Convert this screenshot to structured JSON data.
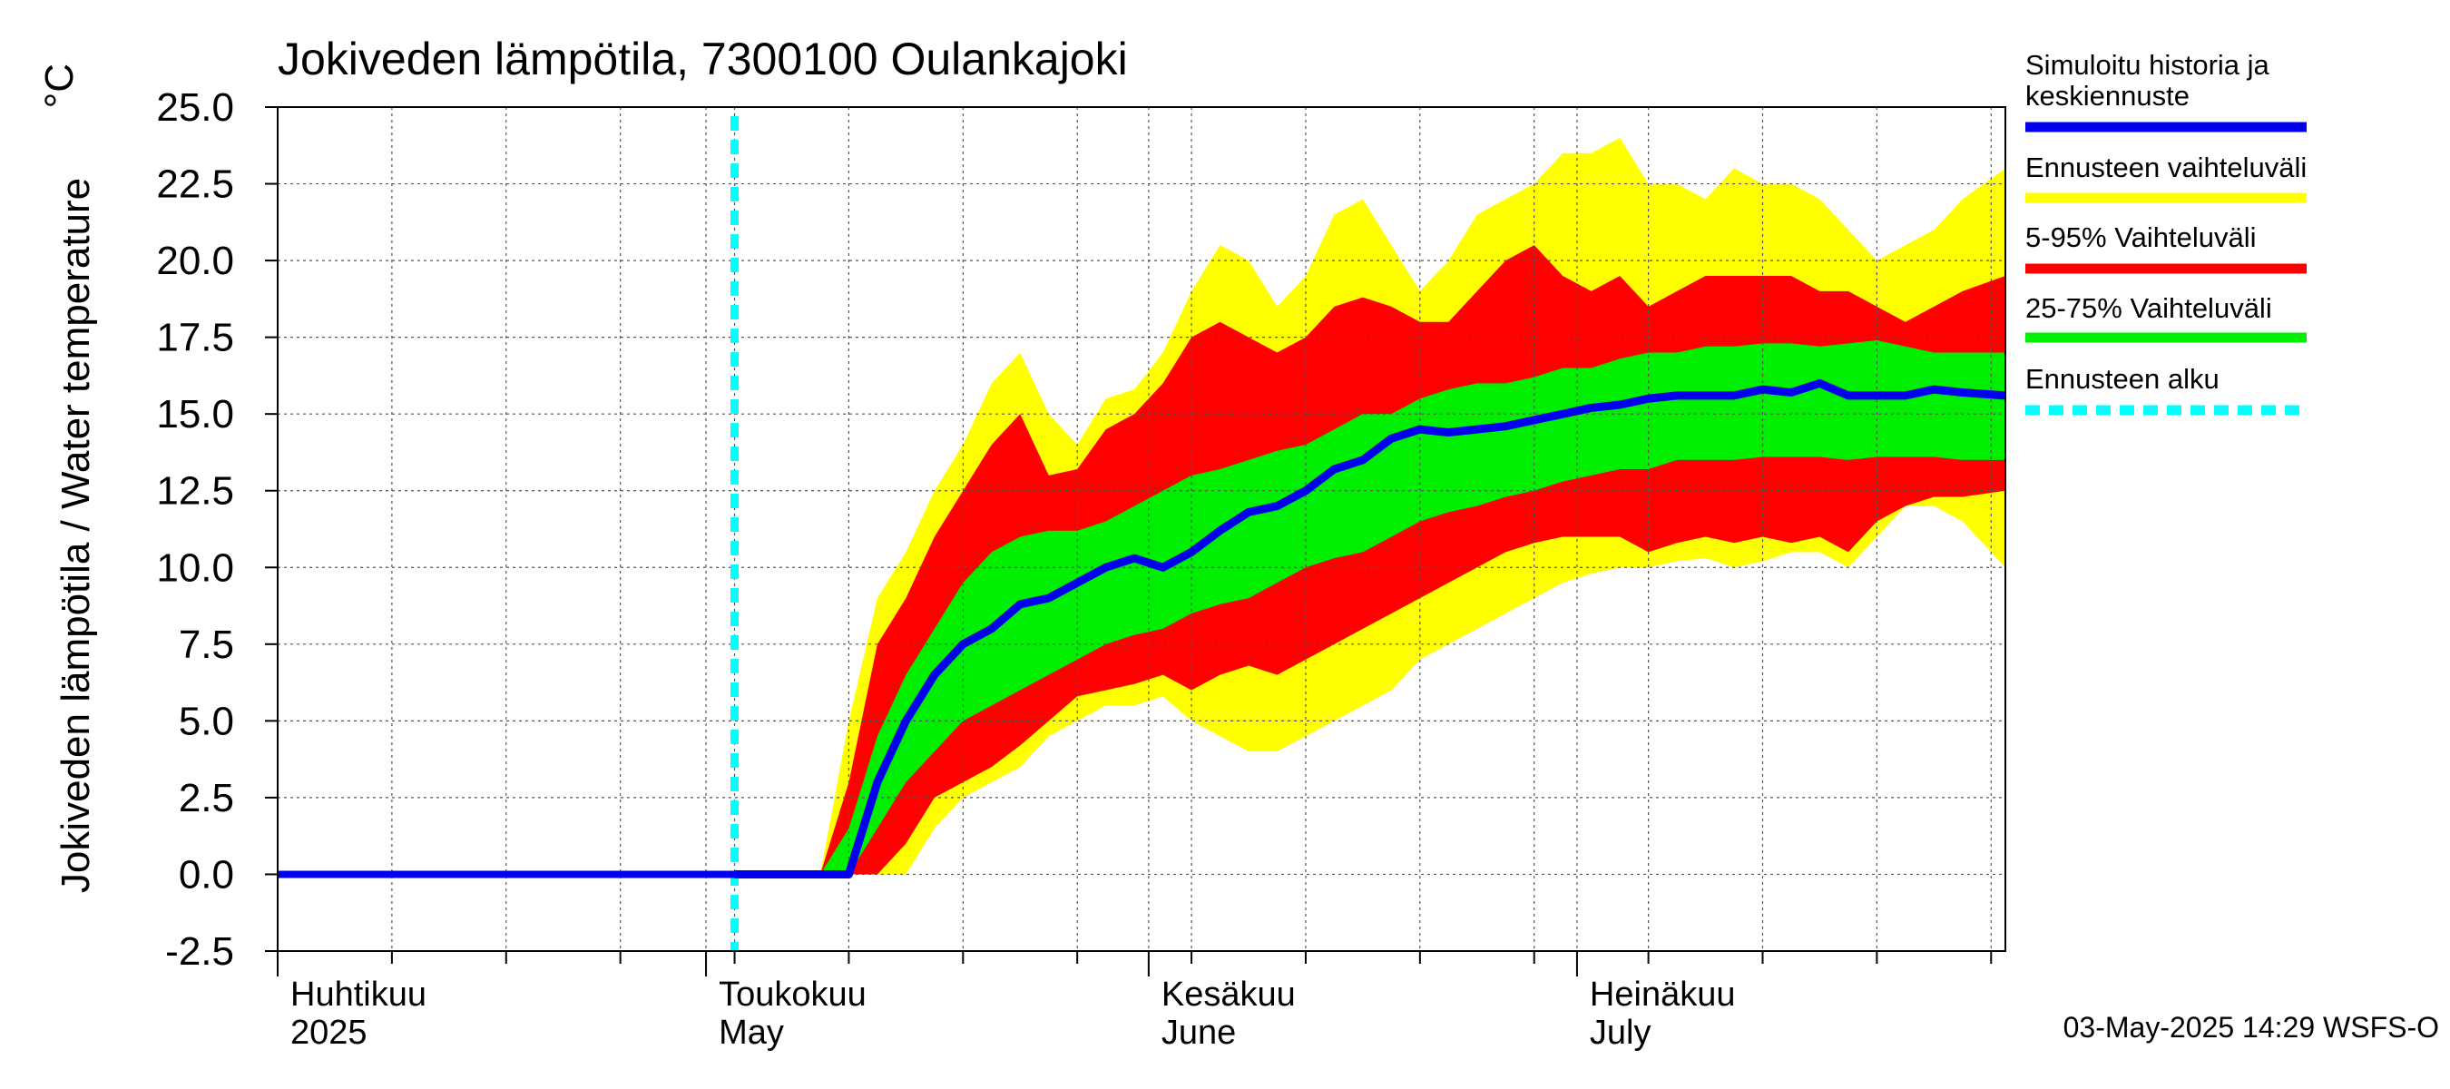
{
  "chart_data": {
    "type": "area",
    "title": "Jokiveden lämpötila, 7300100 Oulankajoki",
    "ylabel": "Jokiveden lämpötila / Water temperature",
    "yunit": "°C",
    "ylim": [
      -2.5,
      25.0
    ],
    "xlim": [
      "2025-04-01",
      "2025-07-31"
    ],
    "yticks": [
      "-2.5",
      "0.0",
      "2.5",
      "5.0",
      "7.5",
      "10.0",
      "12.5",
      "15.0",
      "17.5",
      "20.0",
      "22.5",
      "25.0"
    ],
    "month_labels": [
      {
        "fi": "Huhtikuu",
        "en": "2025",
        "date": "2025-04-01"
      },
      {
        "fi": "Toukokuu",
        "en": "May",
        "date": "2025-05-01"
      },
      {
        "fi": "Kesäkuu",
        "en": "June",
        "date": "2025-06-01"
      },
      {
        "fi": "Heinäkuu",
        "en": "July",
        "date": "2025-07-01"
      }
    ],
    "grid": true,
    "legend_position": "right",
    "forecast_start": "2025-05-03",
    "colors": {
      "median": "#0000ee",
      "range_full": "#ffff00",
      "range_5_95": "#ff0000",
      "range_25_75": "#00ee00",
      "forecast_start": "#00ffff"
    },
    "history": {
      "x": [
        "2025-04-01",
        "2025-05-03"
      ],
      "y": [
        0.0,
        0.0
      ]
    },
    "bands": {
      "dates": [
        "2025-05-03",
        "2025-05-09",
        "2025-05-11",
        "2025-05-13",
        "2025-05-15",
        "2025-05-17",
        "2025-05-19",
        "2025-05-21",
        "2025-05-23",
        "2025-05-25",
        "2025-05-27",
        "2025-05-29",
        "2025-05-31",
        "2025-06-02",
        "2025-06-04",
        "2025-06-06",
        "2025-06-08",
        "2025-06-10",
        "2025-06-12",
        "2025-06-14",
        "2025-06-16",
        "2025-06-18",
        "2025-06-20",
        "2025-06-22",
        "2025-06-24",
        "2025-06-26",
        "2025-06-28",
        "2025-06-30",
        "2025-07-02",
        "2025-07-04",
        "2025-07-06",
        "2025-07-08",
        "2025-07-10",
        "2025-07-12",
        "2025-07-14",
        "2025-07-16",
        "2025-07-18",
        "2025-07-20",
        "2025-07-22",
        "2025-07-24",
        "2025-07-26",
        "2025-07-28",
        "2025-07-31"
      ],
      "max": [
        0.0,
        0.0,
        5.0,
        9.0,
        10.5,
        12.5,
        14.0,
        16.0,
        17.0,
        15.0,
        14.0,
        15.5,
        15.8,
        17.0,
        19.0,
        20.5,
        20.0,
        18.5,
        19.5,
        21.5,
        22.0,
        20.5,
        19.0,
        20.0,
        21.5,
        22.0,
        22.5,
        23.5,
        23.5,
        24.0,
        22.5,
        22.5,
        22.0,
        23.0,
        22.5,
        22.5,
        22.0,
        21.0,
        20.0,
        20.5,
        21.0,
        22.0,
        23.0
      ],
      "p95": [
        0.0,
        0.0,
        3.0,
        7.5,
        9.0,
        11.0,
        12.5,
        14.0,
        15.0,
        13.0,
        13.2,
        14.5,
        15.0,
        16.0,
        17.5,
        18.0,
        17.5,
        17.0,
        17.5,
        18.5,
        18.8,
        18.5,
        18.0,
        18.0,
        19.0,
        20.0,
        20.5,
        19.5,
        19.0,
        19.5,
        18.5,
        19.0,
        19.5,
        19.5,
        19.5,
        19.5,
        19.0,
        19.0,
        18.5,
        18.0,
        18.5,
        19.0,
        19.5
      ],
      "p75": [
        0.0,
        0.0,
        1.5,
        4.5,
        6.5,
        8.0,
        9.5,
        10.5,
        11.0,
        11.2,
        11.2,
        11.5,
        12.0,
        12.5,
        13.0,
        13.2,
        13.5,
        13.8,
        14.0,
        14.5,
        15.0,
        15.0,
        15.5,
        15.8,
        16.0,
        16.0,
        16.2,
        16.5,
        16.5,
        16.8,
        17.0,
        17.0,
        17.2,
        17.2,
        17.3,
        17.3,
        17.2,
        17.3,
        17.4,
        17.2,
        17.0,
        17.0,
        17.0
      ],
      "median": [
        0.0,
        0.0,
        0.0,
        3.0,
        5.0,
        6.5,
        7.5,
        8.0,
        8.8,
        9.0,
        9.5,
        10.0,
        10.3,
        10.0,
        10.5,
        11.2,
        11.8,
        12.0,
        12.5,
        13.2,
        13.5,
        14.2,
        14.5,
        14.4,
        14.5,
        14.6,
        14.8,
        15.0,
        15.2,
        15.3,
        15.5,
        15.6,
        15.6,
        15.6,
        15.8,
        15.7,
        16.0,
        15.6,
        15.6,
        15.6,
        15.8,
        15.7,
        15.6
      ],
      "p25": [
        0.0,
        0.0,
        0.0,
        1.5,
        3.0,
        4.0,
        5.0,
        5.5,
        6.0,
        6.5,
        7.0,
        7.5,
        7.8,
        8.0,
        8.5,
        8.8,
        9.0,
        9.5,
        10.0,
        10.3,
        10.5,
        11.0,
        11.5,
        11.8,
        12.0,
        12.3,
        12.5,
        12.8,
        13.0,
        13.2,
        13.2,
        13.5,
        13.5,
        13.5,
        13.6,
        13.6,
        13.6,
        13.5,
        13.6,
        13.6,
        13.6,
        13.5,
        13.5
      ],
      "p05": [
        0.0,
        0.0,
        0.0,
        0.0,
        1.0,
        2.5,
        3.0,
        3.5,
        4.2,
        5.0,
        5.8,
        6.0,
        6.2,
        6.5,
        6.0,
        6.5,
        6.8,
        6.5,
        7.0,
        7.5,
        8.0,
        8.5,
        9.0,
        9.5,
        10.0,
        10.5,
        10.8,
        11.0,
        11.0,
        11.0,
        10.5,
        10.8,
        11.0,
        10.8,
        11.0,
        10.8,
        11.0,
        10.5,
        11.5,
        12.0,
        12.3,
        12.3,
        12.5
      ],
      "min": [
        0.0,
        0.0,
        0.0,
        0.0,
        0.0,
        1.5,
        2.5,
        3.0,
        3.5,
        4.5,
        5.0,
        5.5,
        5.5,
        5.8,
        5.0,
        4.5,
        4.0,
        4.0,
        4.5,
        5.0,
        5.5,
        6.0,
        7.0,
        7.5,
        8.0,
        8.5,
        9.0,
        9.5,
        9.8,
        10.0,
        10.0,
        10.2,
        10.3,
        10.0,
        10.2,
        10.5,
        10.5,
        10.0,
        11.0,
        12.0,
        12.0,
        11.5,
        10.0
      ]
    },
    "legend": [
      {
        "label": "Simuloitu historia ja keskiennuste",
        "color": "#0000ee",
        "style": "solid"
      },
      {
        "label": "Ennusteen vaihteluväli",
        "color": "#ffff00",
        "style": "solid"
      },
      {
        "label": "5-95% Vaihteluväli",
        "color": "#ff0000",
        "style": "solid"
      },
      {
        "label": "25-75% Vaihteluväli",
        "color": "#00ee00",
        "style": "solid"
      },
      {
        "label": "Ennusteen alku",
        "color": "#00ffff",
        "style": "dashed"
      }
    ],
    "footer": "03-May-2025 14:29 WSFS-O"
  }
}
